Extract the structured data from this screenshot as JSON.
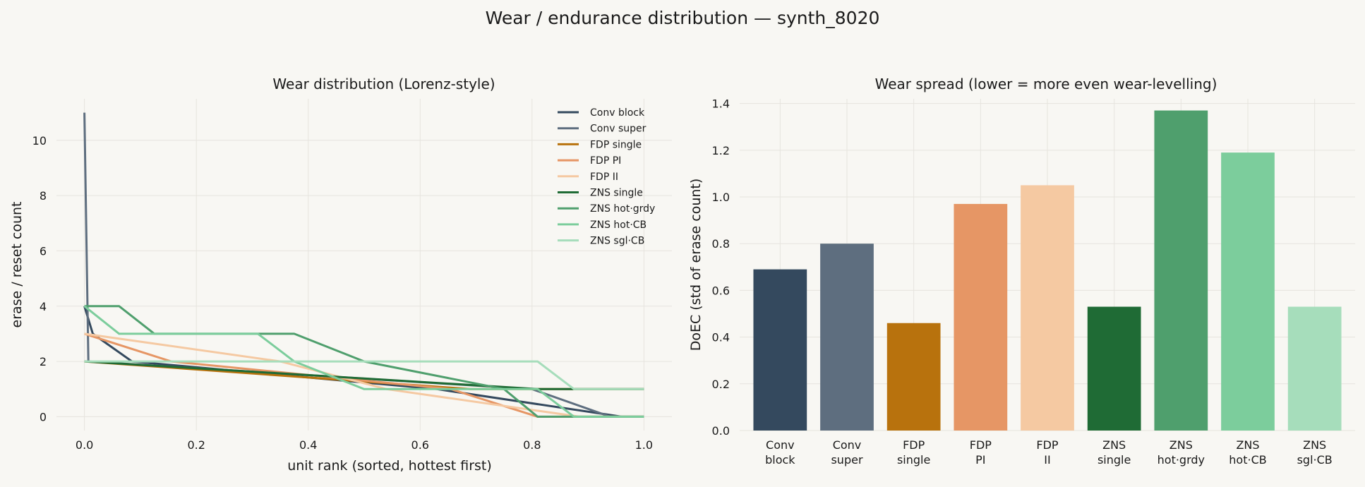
{
  "figure": {
    "title": "Wear / endurance distribution — synth_8020",
    "background": "#f8f7f3"
  },
  "series_colors": {
    "Conv block": "#34495e",
    "Conv super": "#5e6e7f",
    "FDP single": "#b8720d",
    "FDP PI": "#e69665",
    "FDP II": "#f5c9a2",
    "ZNS single": "#1f6b35",
    "ZNS hot·grdy": "#4f9f6d",
    "ZNS hot·CB": "#7ccd9c",
    "ZNS sgl·CB": "#a6ddbb"
  },
  "chart_data": [
    {
      "type": "line",
      "title": "Wear distribution (Lorenz-style)",
      "xlabel": "unit rank (sorted, hottest first)",
      "ylabel": "erase / reset count",
      "xlim": [
        -0.05,
        1.05
      ],
      "ylim": [
        -0.5,
        11.5
      ],
      "xticks": [
        0.0,
        0.2,
        0.4,
        0.6,
        0.8,
        1.0
      ],
      "xtick_labels": [
        "0.0",
        "0.2",
        "0.4",
        "0.6",
        "0.8",
        "1.0"
      ],
      "yticks": [
        0,
        2,
        4,
        6,
        8,
        10
      ],
      "ytick_labels": [
        "0",
        "2",
        "4",
        "6",
        "8",
        "10"
      ],
      "grid": true,
      "legend": "top-right",
      "series": [
        {
          "name": "Conv block",
          "x": [
            0.0,
            0.015,
            0.085,
            0.63,
            0.96,
            1.0
          ],
          "y": [
            4,
            3,
            2,
            1,
            0,
            0
          ]
        },
        {
          "name": "Conv super",
          "x": [
            0.0,
            0.007,
            0.8,
            0.94,
            1.0
          ],
          "y": [
            11,
            2,
            1,
            0,
            0
          ]
        },
        {
          "name": "FDP single",
          "x": [
            0.0,
            0.69,
            1.0
          ],
          "y": [
            2,
            1,
            1
          ]
        },
        {
          "name": "FDP PI",
          "x": [
            0.0,
            0.155,
            0.655,
            0.81,
            1.0
          ],
          "y": [
            3,
            2,
            1,
            0,
            0
          ]
        },
        {
          "name": "FDP II",
          "x": [
            0.0,
            0.35,
            0.54,
            0.885,
            1.0
          ],
          "y": [
            3,
            2,
            1,
            0,
            0
          ]
        },
        {
          "name": "ZNS single",
          "x": [
            0.0,
            0.81,
            1.0
          ],
          "y": [
            2,
            1,
            1
          ]
        },
        {
          "name": "ZNS hot·grdy",
          "x": [
            0.0,
            0.062,
            0.125,
            0.375,
            0.5,
            0.75,
            0.81,
            1.0
          ],
          "y": [
            4,
            4,
            3,
            3,
            2,
            1,
            0,
            0
          ]
        },
        {
          "name": "ZNS hot·CB",
          "x": [
            0.0,
            0.062,
            0.31,
            0.375,
            0.5,
            0.81,
            0.875,
            1.0
          ],
          "y": [
            4,
            3,
            3,
            2,
            1,
            1,
            0,
            0
          ]
        },
        {
          "name": "ZNS sgl·CB",
          "x": [
            0.0,
            0.81,
            0.875,
            1.0
          ],
          "y": [
            2,
            2,
            1,
            1
          ]
        }
      ]
    },
    {
      "type": "bar",
      "title": "Wear spread (lower = more even wear-levelling)",
      "xlabel": "",
      "ylabel": "DoEC (std of erase count)",
      "ylim": [
        0,
        1.42
      ],
      "yticks": [
        0.0,
        0.2,
        0.4,
        0.6,
        0.8,
        1.0,
        1.2,
        1.4
      ],
      "ytick_labels": [
        "0.0",
        "0.2",
        "0.4",
        "0.6",
        "0.8",
        "1.0",
        "1.2",
        "1.4"
      ],
      "grid": true,
      "categories": [
        [
          "Conv",
          "block"
        ],
        [
          "Conv",
          "super"
        ],
        [
          "FDP",
          "single"
        ],
        [
          "FDP",
          "PI"
        ],
        [
          "FDP",
          "II"
        ],
        [
          "ZNS",
          "single"
        ],
        [
          "ZNS",
          "hot·grdy"
        ],
        [
          "ZNS",
          "hot·CB"
        ],
        [
          "ZNS",
          "sgl·CB"
        ]
      ],
      "series_names": [
        "Conv block",
        "Conv super",
        "FDP single",
        "FDP PI",
        "FDP II",
        "ZNS single",
        "ZNS hot·grdy",
        "ZNS hot·CB",
        "ZNS sgl·CB"
      ],
      "values": [
        0.69,
        0.8,
        0.46,
        0.97,
        1.05,
        0.53,
        1.37,
        1.19,
        0.53
      ]
    }
  ]
}
